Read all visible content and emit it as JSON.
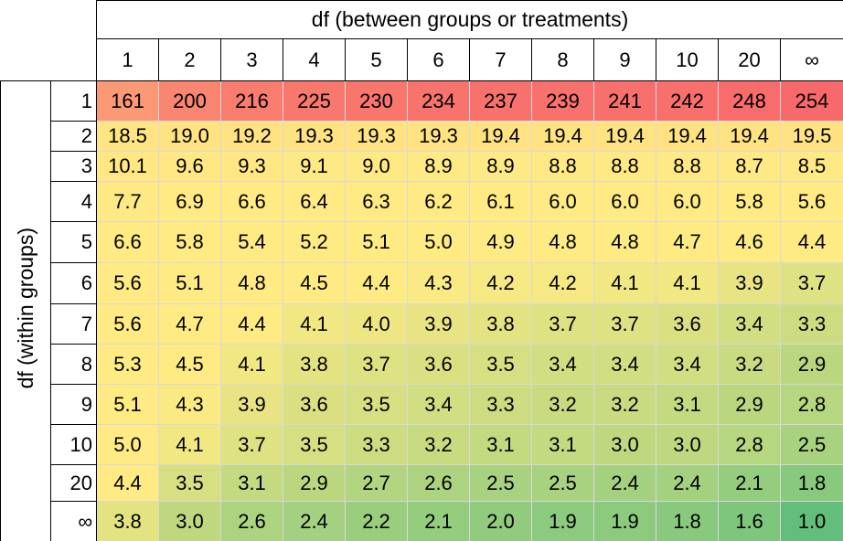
{
  "table": {
    "column_title": "df (between groups or treatments)",
    "row_title": "df (within groups)",
    "columns": [
      "1",
      "2",
      "3",
      "4",
      "5",
      "6",
      "7",
      "8",
      "9",
      "10",
      "20",
      "∞"
    ],
    "rows": [
      {
        "label": "1",
        "values": [
          "161",
          "200",
          "216",
          "225",
          "230",
          "234",
          "237",
          "239",
          "241",
          "242",
          "248",
          "254"
        ]
      },
      {
        "label": "2",
        "values": [
          "18.5",
          "19.0",
          "19.2",
          "19.3",
          "19.3",
          "19.3",
          "19.4",
          "19.4",
          "19.4",
          "19.4",
          "19.4",
          "19.5"
        ]
      },
      {
        "label": "3",
        "values": [
          "10.1",
          "9.6",
          "9.3",
          "9.1",
          "9.0",
          "8.9",
          "8.9",
          "8.8",
          "8.8",
          "8.8",
          "8.7",
          "8.5"
        ]
      },
      {
        "label": "4",
        "values": [
          "7.7",
          "6.9",
          "6.6",
          "6.4",
          "6.3",
          "6.2",
          "6.1",
          "6.0",
          "6.0",
          "6.0",
          "5.8",
          "5.6"
        ]
      },
      {
        "label": "5",
        "values": [
          "6.6",
          "5.8",
          "5.4",
          "5.2",
          "5.1",
          "5.0",
          "4.9",
          "4.8",
          "4.8",
          "4.7",
          "4.6",
          "4.4"
        ]
      },
      {
        "label": "6",
        "values": [
          "5.6",
          "5.1",
          "4.8",
          "4.5",
          "4.4",
          "4.3",
          "4.2",
          "4.2",
          "4.1",
          "4.1",
          "3.9",
          "3.7"
        ]
      },
      {
        "label": "7",
        "values": [
          "5.6",
          "4.7",
          "4.4",
          "4.1",
          "4.0",
          "3.9",
          "3.8",
          "3.7",
          "3.7",
          "3.6",
          "3.4",
          "3.3"
        ]
      },
      {
        "label": "8",
        "values": [
          "5.3",
          "4.5",
          "4.1",
          "3.8",
          "3.7",
          "3.6",
          "3.5",
          "3.4",
          "3.4",
          "3.4",
          "3.2",
          "2.9"
        ]
      },
      {
        "label": "9",
        "values": [
          "5.1",
          "4.3",
          "3.9",
          "3.6",
          "3.5",
          "3.4",
          "3.3",
          "3.2",
          "3.2",
          "3.1",
          "2.9",
          "2.8"
        ]
      },
      {
        "label": "10",
        "values": [
          "5.0",
          "4.1",
          "3.7",
          "3.5",
          "3.3",
          "3.2",
          "3.1",
          "3.1",
          "3.0",
          "3.0",
          "2.8",
          "2.5"
        ]
      },
      {
        "label": "20",
        "values": [
          "4.4",
          "3.5",
          "3.1",
          "2.9",
          "2.7",
          "2.6",
          "2.5",
          "2.5",
          "2.4",
          "2.4",
          "2.1",
          "1.8"
        ]
      },
      {
        "label": "∞",
        "values": [
          "3.8",
          "3.0",
          "2.6",
          "2.4",
          "2.2",
          "2.1",
          "2.0",
          "1.9",
          "1.9",
          "1.8",
          "1.6",
          "1.0"
        ]
      }
    ]
  }
}
